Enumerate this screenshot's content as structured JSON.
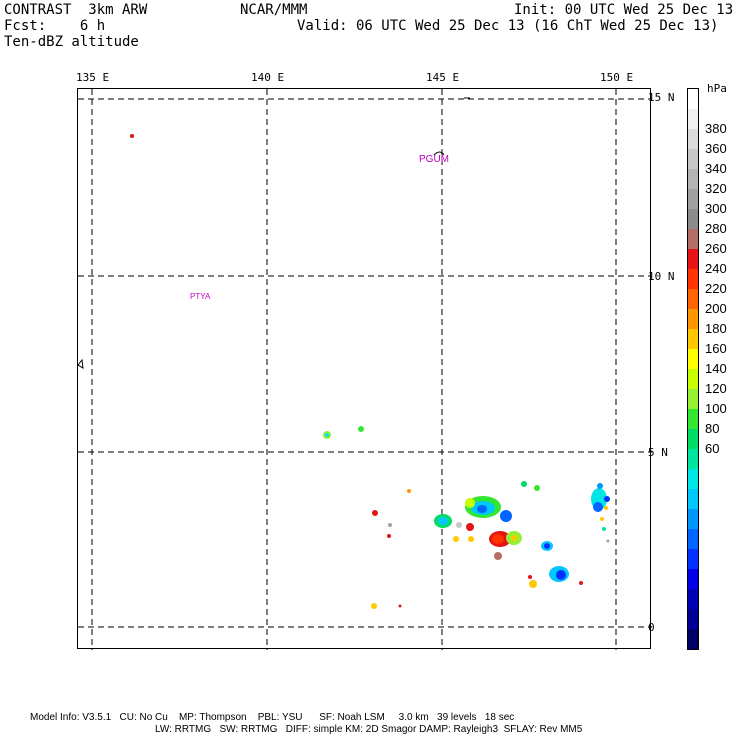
{
  "header": {
    "title": "CONTRAST  3km ARW",
    "fcst": "Fcst:    6 h",
    "field": "Ten-dBZ altitude",
    "center": "NCAR/MMM",
    "init": "Init: 00 UTC Wed 25 Dec 13",
    "valid": "Valid: 06 UTC Wed 25 Dec 13 (16 ChT Wed 25 Dec 13)"
  },
  "map": {
    "lon_labels": [
      "135 E",
      "140 E",
      "145 E",
      "150 E"
    ],
    "lat_labels": [
      "15 N",
      "10 N",
      "5 N",
      "0"
    ],
    "stations": [
      "PGUM",
      "PTYA"
    ]
  },
  "colorbar": {
    "unit": "hPa",
    "labels": [
      "380",
      "360",
      "340",
      "320",
      "300",
      "280",
      "260",
      "240",
      "220",
      "200",
      "180",
      "160",
      "140",
      "120",
      "100",
      "80",
      "60"
    ],
    "colors": [
      "#ffffff",
      "#f0f0f0",
      "#dcdcdc",
      "#c8c8c8",
      "#b4b4b4",
      "#a0a0a0",
      "#8c8c8c",
      "#b46e64",
      "#e61414",
      "#ff3200",
      "#ff6400",
      "#ff9600",
      "#ffc800",
      "#ffff00",
      "#c8ff00",
      "#96f032",
      "#32e632",
      "#00dc64",
      "#00e6a0",
      "#00e6e6",
      "#00c8ff",
      "#0096ff",
      "#0064ff",
      "#0032ff",
      "#0000e6",
      "#0000b4",
      "#000096",
      "#000064"
    ]
  },
  "footer": {
    "line1": "Model Info: V3.5.1   CU: No Cu    MP: Thompson    PBL: YSU      SF: Noah LSM     3.0 km   39 levels   18 sec",
    "line2": "LW: RRTMG   SW: RRTMG   DIFF: simple KM: 2D Smagor DAMP: Rayleigh3  SFLAY: Rev MM5"
  }
}
